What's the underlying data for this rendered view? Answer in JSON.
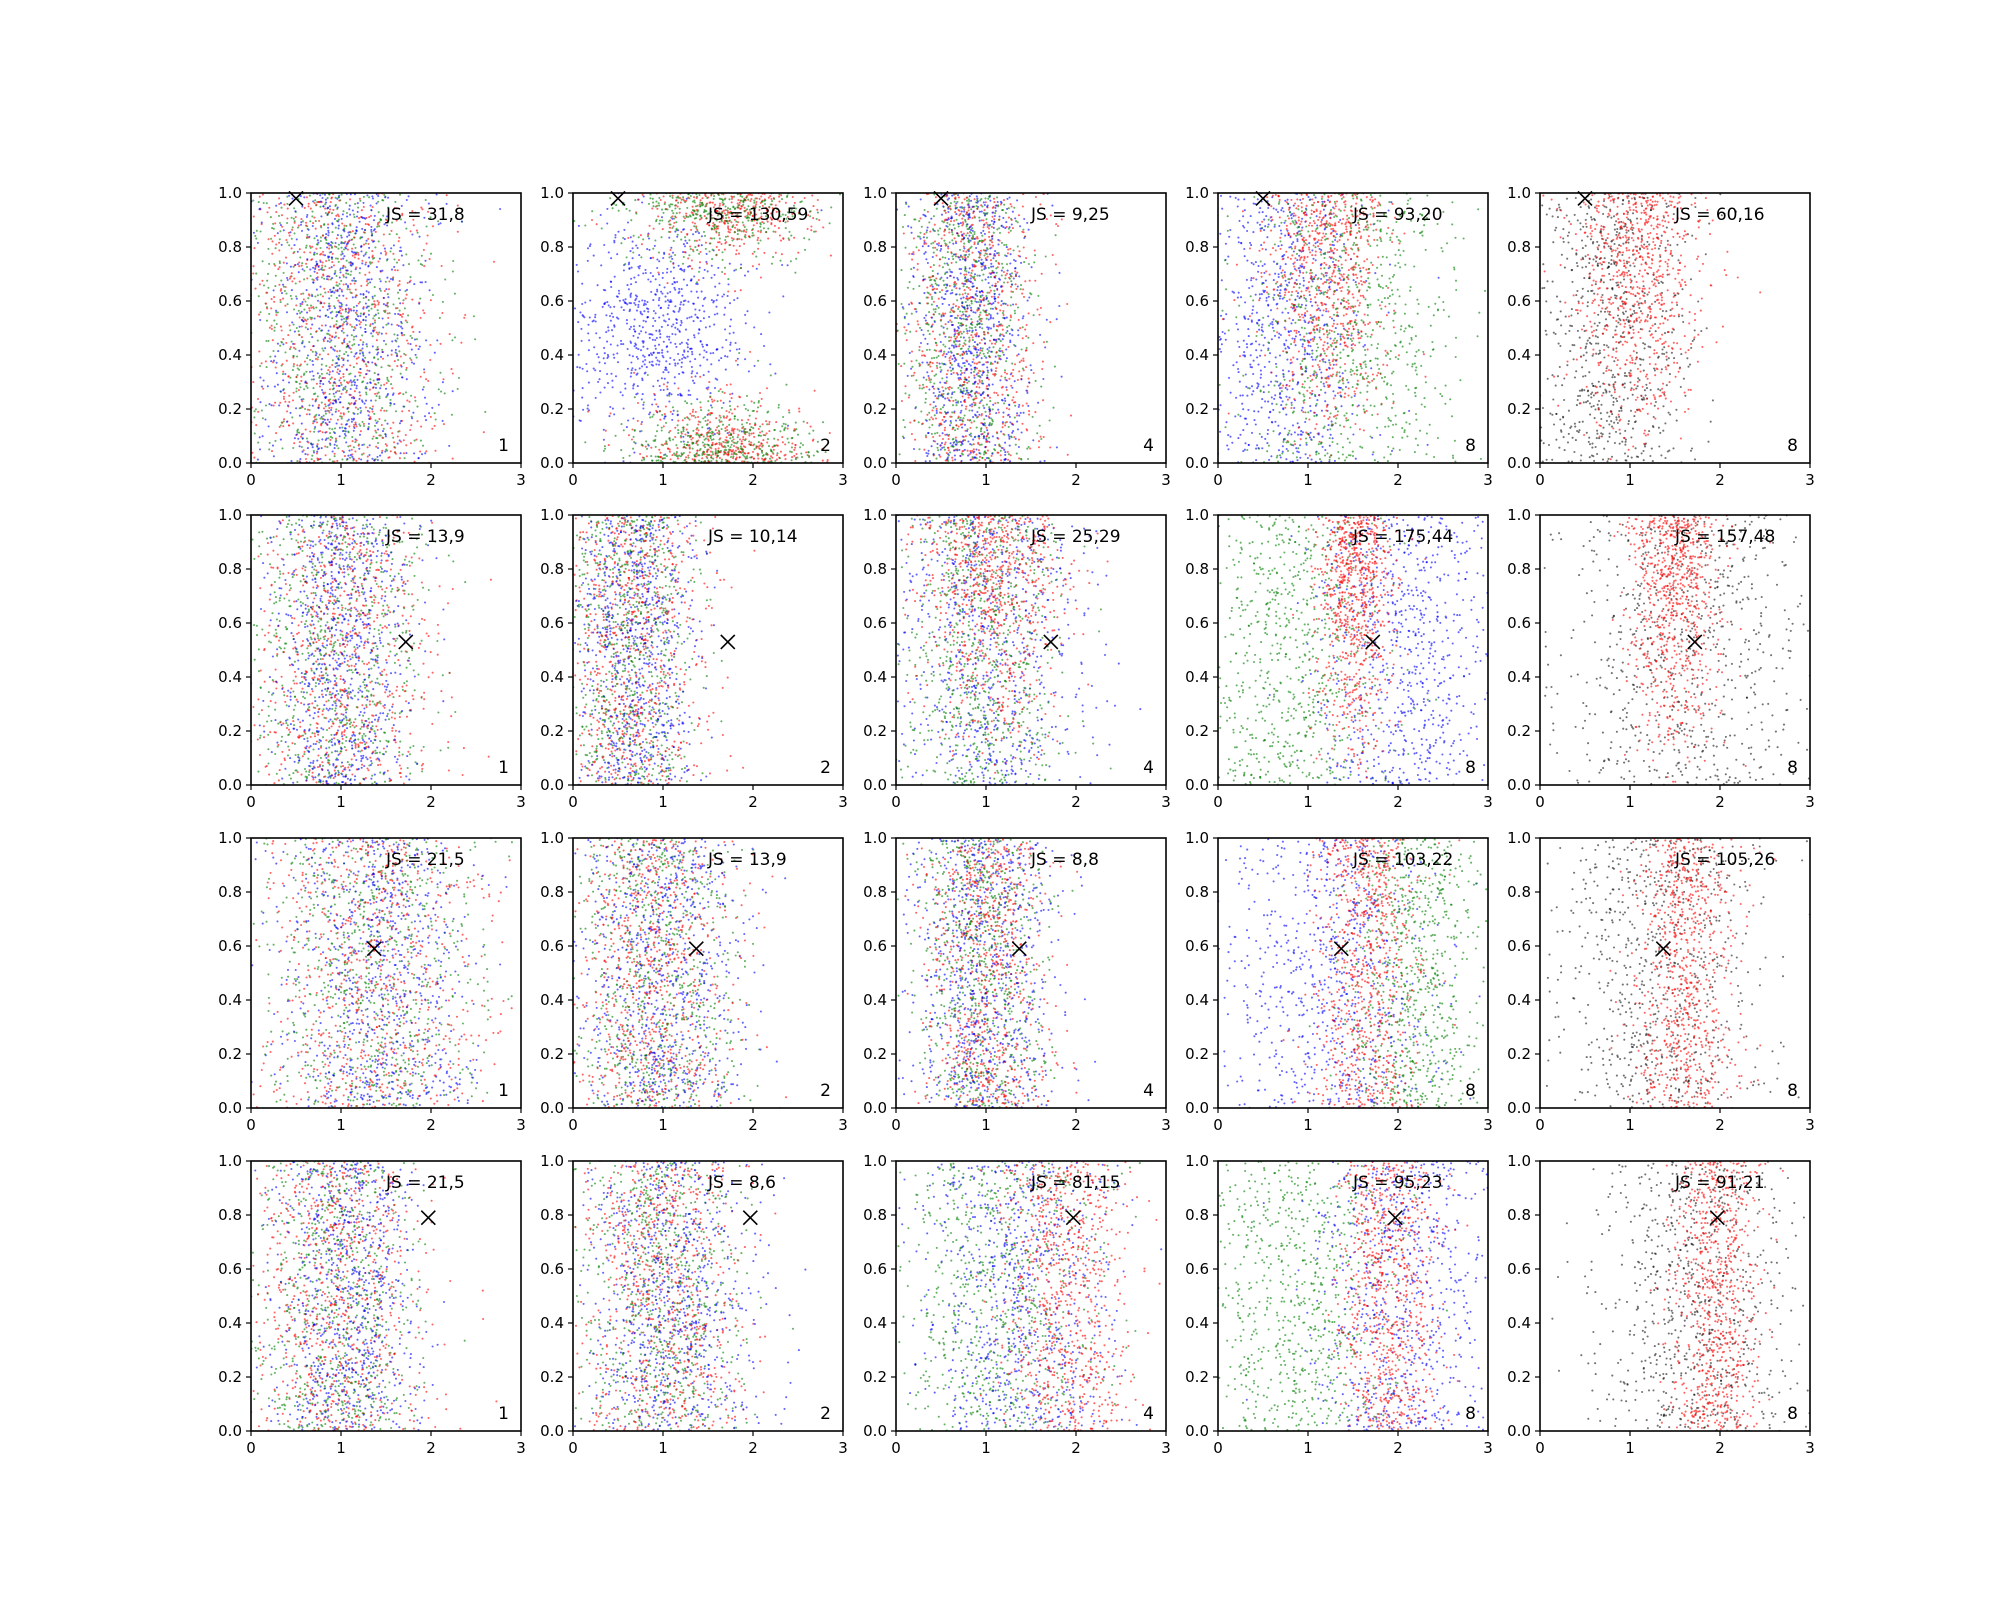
{
  "chart_data": {
    "type": "scatter",
    "layout": {
      "rows": 4,
      "cols": 5
    },
    "xlim": [
      0,
      3
    ],
    "ylim": [
      0,
      1
    ],
    "x_ticks": [
      "0",
      "1",
      "2",
      "3"
    ],
    "y_ticks": [
      "0.0",
      "0.2",
      "0.4",
      "0.6",
      "0.8",
      "1.0"
    ],
    "grid": false,
    "colors": {
      "red": "#ff0000",
      "green": "#008000",
      "blue": "#0000ff",
      "black": "#000000"
    },
    "rows": [
      {
        "marker": [
          0.5,
          0.98
        ],
        "panels": [
          {
            "js": "JS = 31,8",
            "k": "1",
            "series": [
              {
                "color": "green",
                "x_mean": 0.95,
                "x_sd": 0.55,
                "y_profile": "uniform"
              },
              {
                "color": "red",
                "x_mean": 1.0,
                "x_sd": 0.6,
                "y_profile": "uniform"
              },
              {
                "color": "blue",
                "x_mean": 1.05,
                "x_sd": 0.45,
                "y_profile": "uniform"
              }
            ]
          },
          {
            "js": "JS = 130,59",
            "k": "2",
            "series": [
              {
                "color": "blue",
                "x_mean": 0.95,
                "x_sd": 0.5,
                "y_profile": "middle"
              },
              {
                "color": "red",
                "x_mean": 1.75,
                "x_sd": 0.45,
                "y_profile": "edges"
              },
              {
                "color": "green",
                "x_mean": 1.6,
                "x_sd": 0.55,
                "y_profile": "edges"
              }
            ]
          },
          {
            "js": "JS = 9,25",
            "k": "4",
            "series": [
              {
                "color": "green",
                "x_mean": 0.8,
                "x_sd": 0.35,
                "y_profile": "uniform"
              },
              {
                "color": "red",
                "x_mean": 0.85,
                "x_sd": 0.4,
                "y_profile": "uniform"
              },
              {
                "color": "blue",
                "x_mean": 0.85,
                "x_sd": 0.35,
                "y_profile": "uniform"
              }
            ]
          },
          {
            "js": "JS = 93,20",
            "k": "8",
            "series": [
              {
                "color": "blue",
                "x_mean": 0.75,
                "x_sd": 0.45,
                "y_profile": "uniform"
              },
              {
                "color": "red",
                "x_mean": 1.2,
                "x_sd": 0.35,
                "y_profile": "upper"
              },
              {
                "color": "green",
                "x_mean": 1.5,
                "x_sd": 0.6,
                "y_profile": "uniform"
              }
            ]
          },
          {
            "js": "JS = 60,16",
            "k": "8",
            "series": [
              {
                "color": "black",
                "x_mean": 0.8,
                "x_sd": 0.45,
                "y_profile": "uniform"
              },
              {
                "color": "red",
                "x_mean": 1.1,
                "x_sd": 0.35,
                "y_profile": "upper"
              }
            ]
          }
        ]
      },
      {
        "marker": [
          1.72,
          0.53
        ],
        "panels": [
          {
            "js": "JS = 13,9",
            "k": "1",
            "series": [
              {
                "color": "green",
                "x_mean": 0.95,
                "x_sd": 0.5,
                "y_profile": "uniform"
              },
              {
                "color": "red",
                "x_mean": 0.95,
                "x_sd": 0.5,
                "y_profile": "uniform"
              },
              {
                "color": "blue",
                "x_mean": 1.0,
                "x_sd": 0.4,
                "y_profile": "uniform"
              }
            ]
          },
          {
            "js": "JS = 10,14",
            "k": "2",
            "series": [
              {
                "color": "green",
                "x_mean": 0.6,
                "x_sd": 0.35,
                "y_profile": "uniform"
              },
              {
                "color": "red",
                "x_mean": 0.65,
                "x_sd": 0.4,
                "y_profile": "uniform"
              },
              {
                "color": "blue",
                "x_mean": 0.7,
                "x_sd": 0.35,
                "y_profile": "uniform"
              }
            ]
          },
          {
            "js": "JS = 25,29",
            "k": "4",
            "series": [
              {
                "color": "blue",
                "x_mean": 1.0,
                "x_sd": 0.55,
                "y_profile": "uniform"
              },
              {
                "color": "green",
                "x_mean": 0.95,
                "x_sd": 0.45,
                "y_profile": "uniform"
              },
              {
                "color": "red",
                "x_mean": 1.1,
                "x_sd": 0.4,
                "y_profile": "upper"
              }
            ]
          },
          {
            "js": "JS = 175,44",
            "k": "8",
            "series": [
              {
                "color": "green",
                "x_mean": 0.8,
                "x_sd": 0.5,
                "y_profile": "uniform"
              },
              {
                "color": "blue",
                "x_mean": 2.1,
                "x_sd": 0.5,
                "y_profile": "uniform"
              },
              {
                "color": "red",
                "x_mean": 1.5,
                "x_sd": 0.22,
                "y_profile": "upper"
              }
            ]
          },
          {
            "js": "JS = 157,48",
            "k": "8",
            "series": [
              {
                "color": "black",
                "x_mean": 1.6,
                "x_sd": 0.75,
                "y_profile": "uniform"
              },
              {
                "color": "red",
                "x_mean": 1.5,
                "x_sd": 0.25,
                "y_profile": "upper"
              }
            ]
          }
        ]
      },
      {
        "marker": [
          1.37,
          0.59
        ],
        "panels": [
          {
            "js": "JS = 21,5",
            "k": "1",
            "series": [
              {
                "color": "green",
                "x_mean": 1.35,
                "x_sd": 0.65,
                "y_profile": "uniform"
              },
              {
                "color": "red",
                "x_mean": 1.35,
                "x_sd": 0.65,
                "y_profile": "uniform"
              },
              {
                "color": "blue",
                "x_mean": 1.4,
                "x_sd": 0.55,
                "y_profile": "uniform"
              }
            ]
          },
          {
            "js": "JS = 13,9",
            "k": "2",
            "series": [
              {
                "color": "green",
                "x_mean": 0.9,
                "x_sd": 0.45,
                "y_profile": "uniform"
              },
              {
                "color": "red",
                "x_mean": 0.9,
                "x_sd": 0.45,
                "y_profile": "uniform"
              },
              {
                "color": "blue",
                "x_mean": 1.0,
                "x_sd": 0.45,
                "y_profile": "uniform"
              }
            ]
          },
          {
            "js": "JS = 8,8",
            "k": "4",
            "series": [
              {
                "color": "green",
                "x_mean": 0.95,
                "x_sd": 0.35,
                "y_profile": "uniform"
              },
              {
                "color": "red",
                "x_mean": 1.0,
                "x_sd": 0.35,
                "y_profile": "uniform"
              },
              {
                "color": "blue",
                "x_mean": 1.0,
                "x_sd": 0.4,
                "y_profile": "uniform"
              }
            ]
          },
          {
            "js": "JS = 103,22",
            "k": "8",
            "series": [
              {
                "color": "blue",
                "x_mean": 1.3,
                "x_sd": 0.55,
                "y_profile": "uniform"
              },
              {
                "color": "green",
                "x_mean": 2.2,
                "x_sd": 0.4,
                "y_profile": "uniform"
              },
              {
                "color": "red",
                "x_mean": 1.65,
                "x_sd": 0.28,
                "y_profile": "uniform"
              }
            ]
          },
          {
            "js": "JS = 105,26",
            "k": "8",
            "series": [
              {
                "color": "black",
                "x_mean": 1.35,
                "x_sd": 0.6,
                "y_profile": "uniform"
              },
              {
                "color": "red",
                "x_mean": 1.6,
                "x_sd": 0.28,
                "y_profile": "uniform"
              }
            ]
          }
        ]
      },
      {
        "marker": [
          1.97,
          0.79
        ],
        "panels": [
          {
            "js": "JS = 21,5",
            "k": "1",
            "series": [
              {
                "color": "green",
                "x_mean": 0.95,
                "x_sd": 0.45,
                "y_profile": "uniform"
              },
              {
                "color": "red",
                "x_mean": 0.95,
                "x_sd": 0.5,
                "y_profile": "uniform"
              },
              {
                "color": "blue",
                "x_mean": 1.1,
                "x_sd": 0.4,
                "y_profile": "uniform"
              }
            ]
          },
          {
            "js": "JS = 8,6",
            "k": "2",
            "series": [
              {
                "color": "green",
                "x_mean": 1.0,
                "x_sd": 0.45,
                "y_profile": "uniform"
              },
              {
                "color": "red",
                "x_mean": 1.0,
                "x_sd": 0.45,
                "y_profile": "uniform"
              },
              {
                "color": "blue",
                "x_mean": 1.1,
                "x_sd": 0.5,
                "y_profile": "uniform"
              }
            ]
          },
          {
            "js": "JS = 81,15",
            "k": "4",
            "series": [
              {
                "color": "green",
                "x_mean": 1.15,
                "x_sd": 0.55,
                "y_profile": "uniform"
              },
              {
                "color": "blue",
                "x_mean": 1.35,
                "x_sd": 0.55,
                "y_profile": "uniform"
              },
              {
                "color": "red",
                "x_mean": 1.9,
                "x_sd": 0.35,
                "y_profile": "uniform"
              }
            ]
          },
          {
            "js": "JS = 95,23",
            "k": "8",
            "series": [
              {
                "color": "green",
                "x_mean": 0.9,
                "x_sd": 0.55,
                "y_profile": "uniform"
              },
              {
                "color": "blue",
                "x_mean": 2.1,
                "x_sd": 0.5,
                "y_profile": "uniform"
              },
              {
                "color": "red",
                "x_mean": 1.9,
                "x_sd": 0.28,
                "y_profile": "uniform"
              }
            ]
          },
          {
            "js": "JS = 91,21",
            "k": "8",
            "series": [
              {
                "color": "black",
                "x_mean": 1.75,
                "x_sd": 0.55,
                "y_profile": "uniform"
              },
              {
                "color": "red",
                "x_mean": 1.95,
                "x_sd": 0.25,
                "y_profile": "uniform"
              }
            ]
          }
        ]
      }
    ]
  }
}
